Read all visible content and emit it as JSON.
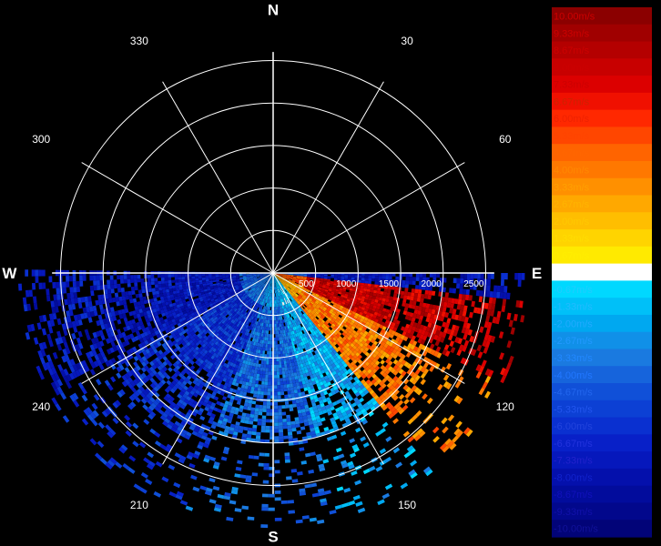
{
  "chart_data": {
    "type": "heatmap",
    "kind": "polar-radar-ppi",
    "title": "",
    "compass": {
      "north": "N",
      "south": "S",
      "east": "E",
      "west": "W"
    },
    "azimuth_ticks": [
      30,
      60,
      120,
      150,
      210,
      240,
      300,
      330
    ],
    "range_ticks": [
      500,
      1000,
      1500,
      2000,
      2500
    ],
    "range_max": 2600,
    "grid": true,
    "legend_position": "right",
    "colorbar": {
      "unit": "m/s",
      "labels": [
        "10.00m/s",
        "9.33m/s",
        "8.67m/s",
        "8.00m/s",
        "7.33m/s",
        "6.67m/s",
        "6.00m/s",
        "5.33m/s",
        "4.67m/s",
        "4.00m/s",
        "3.33m/s",
        "2.67m/s",
        "2.00m/s",
        "1.33m/s",
        "0.67m/s",
        "0.00m/s",
        "-0.67m/s",
        "-1.33m/s",
        "-2.00m/s",
        "-2.67m/s",
        "-3.33m/s",
        "-4.00m/s",
        "-4.67m/s",
        "-5.33m/s",
        "-6.00m/s",
        "-6.67m/s",
        "-7.33m/s",
        "-8.00m/s",
        "-8.67m/s",
        "-9.33m/s",
        "-10.00m/s"
      ],
      "colors": [
        "#8b0000",
        "#a00000",
        "#b40000",
        "#c80000",
        "#dc0000",
        "#f01000",
        "#ff2800",
        "#ff4600",
        "#ff6400",
        "#ff7800",
        "#ff9000",
        "#ffa800",
        "#ffbe00",
        "#ffd400",
        "#ffea00",
        "#ffffff",
        "#00d8ff",
        "#00c0f8",
        "#00a8f0",
        "#1090e8",
        "#1a7ae0",
        "#1664dc",
        "#1050d8",
        "#0c40d4",
        "#0a30d0",
        "#0820c8",
        "#0618bc",
        "#0410ac",
        "#020c9c",
        "#02088c",
        "#020478"
      ],
      "label_colors": [
        "#cc0000",
        "#cc0000",
        "#cc0000",
        "#cc0000",
        "#cc0000",
        "#cc2200",
        "#ee2200",
        "#ff4400",
        "#ff6600",
        "#ff8800",
        "#ffa000",
        "#ffb400",
        "#ffc800",
        "#ffdd00",
        "#ffee00",
        "#ffffff",
        "#22ccff",
        "#22bbff",
        "#22aaff",
        "#2299ff",
        "#2288ff",
        "#2277ff",
        "#2266ee",
        "#2255ee",
        "#2244dd",
        "#2233dd",
        "#2222cc",
        "#1122cc",
        "#1111bb",
        "#1111aa",
        "#111199"
      ]
    },
    "velocity_field": {
      "azimuth_coverage_deg": [
        90,
        270
      ],
      "regions": [
        {
          "azimuth": [
            95,
            115
          ],
          "range": [
            0,
            2700
          ],
          "velocity": 8.0
        },
        {
          "azimuth": [
            115,
            140
          ],
          "range": [
            0,
            2200
          ],
          "velocity": 4.0
        },
        {
          "azimuth": [
            140,
            165
          ],
          "range": [
            0,
            2000
          ],
          "velocity": -2.0
        },
        {
          "azimuth": [
            165,
            200
          ],
          "range": [
            0,
            2000
          ],
          "velocity": -4.0
        },
        {
          "azimuth": [
            200,
            240
          ],
          "range": [
            0,
            2200
          ],
          "velocity": -6.0
        },
        {
          "azimuth": [
            240,
            270
          ],
          "range": [
            0,
            2900
          ],
          "velocity": -7.3
        }
      ]
    }
  }
}
